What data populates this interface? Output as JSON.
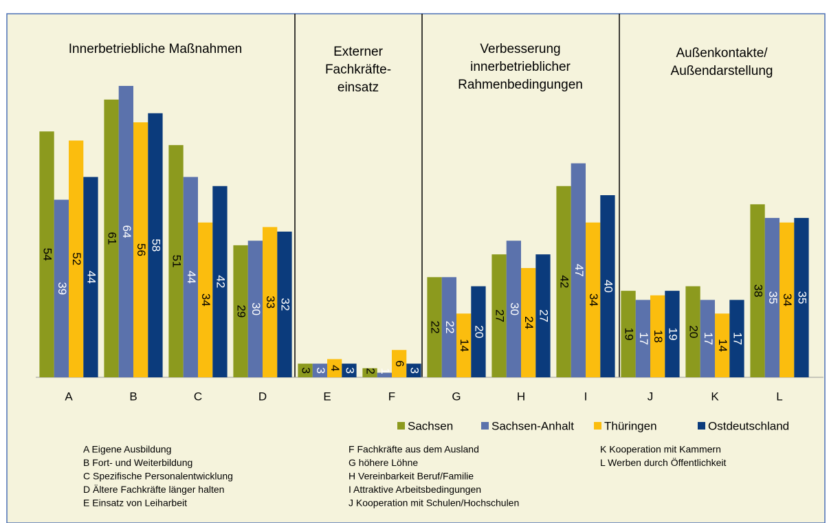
{
  "chart_data": {
    "type": "bar",
    "group_titles": [
      [
        "Innerbetriebliche Maßnahmen"
      ],
      [
        "Externer",
        "Fachkräfte-",
        "einsatz"
      ],
      [
        "Verbesserung",
        "innerbetrieblicher",
        "Rahmenbedingungen"
      ],
      [
        "Außenkontakte/",
        "Außendarstellung"
      ]
    ],
    "categories": [
      "A",
      "B",
      "C",
      "D",
      "E",
      "F",
      "G",
      "H",
      "I",
      "J",
      "K",
      "L"
    ],
    "series": [
      {
        "name": "Sachsen",
        "color": "#8c9a1e",
        "values": [
          54,
          61,
          51,
          29,
          3,
          2,
          22,
          27,
          42,
          19,
          20,
          38
        ]
      },
      {
        "name": "Sachsen-Anhalt",
        "color": "#5b72ac",
        "values": [
          39,
          64,
          44,
          30,
          3,
          1,
          22,
          30,
          47,
          17,
          17,
          35
        ]
      },
      {
        "name": "Thüringen",
        "color": "#fbbd0e",
        "values": [
          52,
          56,
          34,
          33,
          4,
          6,
          14,
          24,
          34,
          18,
          14,
          34
        ]
      },
      {
        "name": "Ostdeutschland",
        "color": "#0b3b7c",
        "values": [
          44,
          58,
          42,
          32,
          3,
          3,
          20,
          27,
          40,
          19,
          17,
          35
        ]
      }
    ],
    "key": [
      "A Eigene Ausbildung",
      "B Fort- und Weiterbildung",
      "C Spezifische Personalentwicklung",
      "D Ältere Fachkräfte länger halten",
      "E Einsatz von Leiharbeit",
      "F Fachkräfte aus dem Ausland",
      "G höhere Löhne",
      "H Vereinbarkeit Beruf/Familie",
      "I  Attraktive Arbeitsbedingungen",
      "J Kooperation mit Schulen/Hochschulen",
      "K Kooperation mit Kammern",
      "L Werben durch Öffentlichkeit"
    ]
  }
}
